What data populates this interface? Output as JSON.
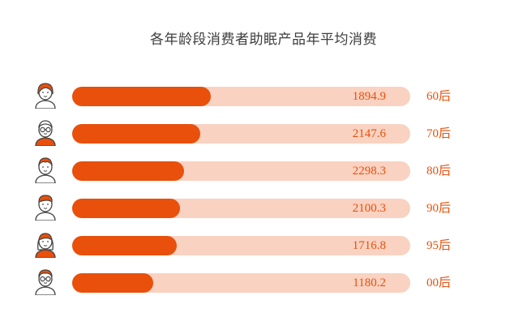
{
  "title": "各年龄段消费者助眠产品年平均消费",
  "colors": {
    "bar_fill": "#e8500c",
    "bar_track": "#f9d2c1",
    "text_accent": "#e8500c",
    "title_text": "#3d3d3d"
  },
  "chart_data": {
    "type": "bar",
    "orientation": "horizontal",
    "title": "各年龄段消费者助眠产品年平均消费",
    "categories": [
      "60后",
      "70后",
      "80后",
      "90后",
      "95后",
      "00后"
    ],
    "values": [
      1894.9,
      2147.6,
      2298.3,
      2100.3,
      1716.8,
      1180.2
    ],
    "value_labels": [
      "1894.9",
      "2147.6",
      "2298.3",
      "2100.3",
      "1716.8",
      "1180.2"
    ],
    "bar_fill_fractions": [
      0.41,
      0.38,
      0.33,
      0.32,
      0.31,
      0.24
    ],
    "avatar_icons": [
      "woman-bob-icon",
      "man-glasses-icon",
      "woman-ponytail-icon",
      "man-short-hair-icon",
      "woman-long-hair-icon",
      "boy-glasses-icon"
    ],
    "legend": "none",
    "grid": false
  }
}
